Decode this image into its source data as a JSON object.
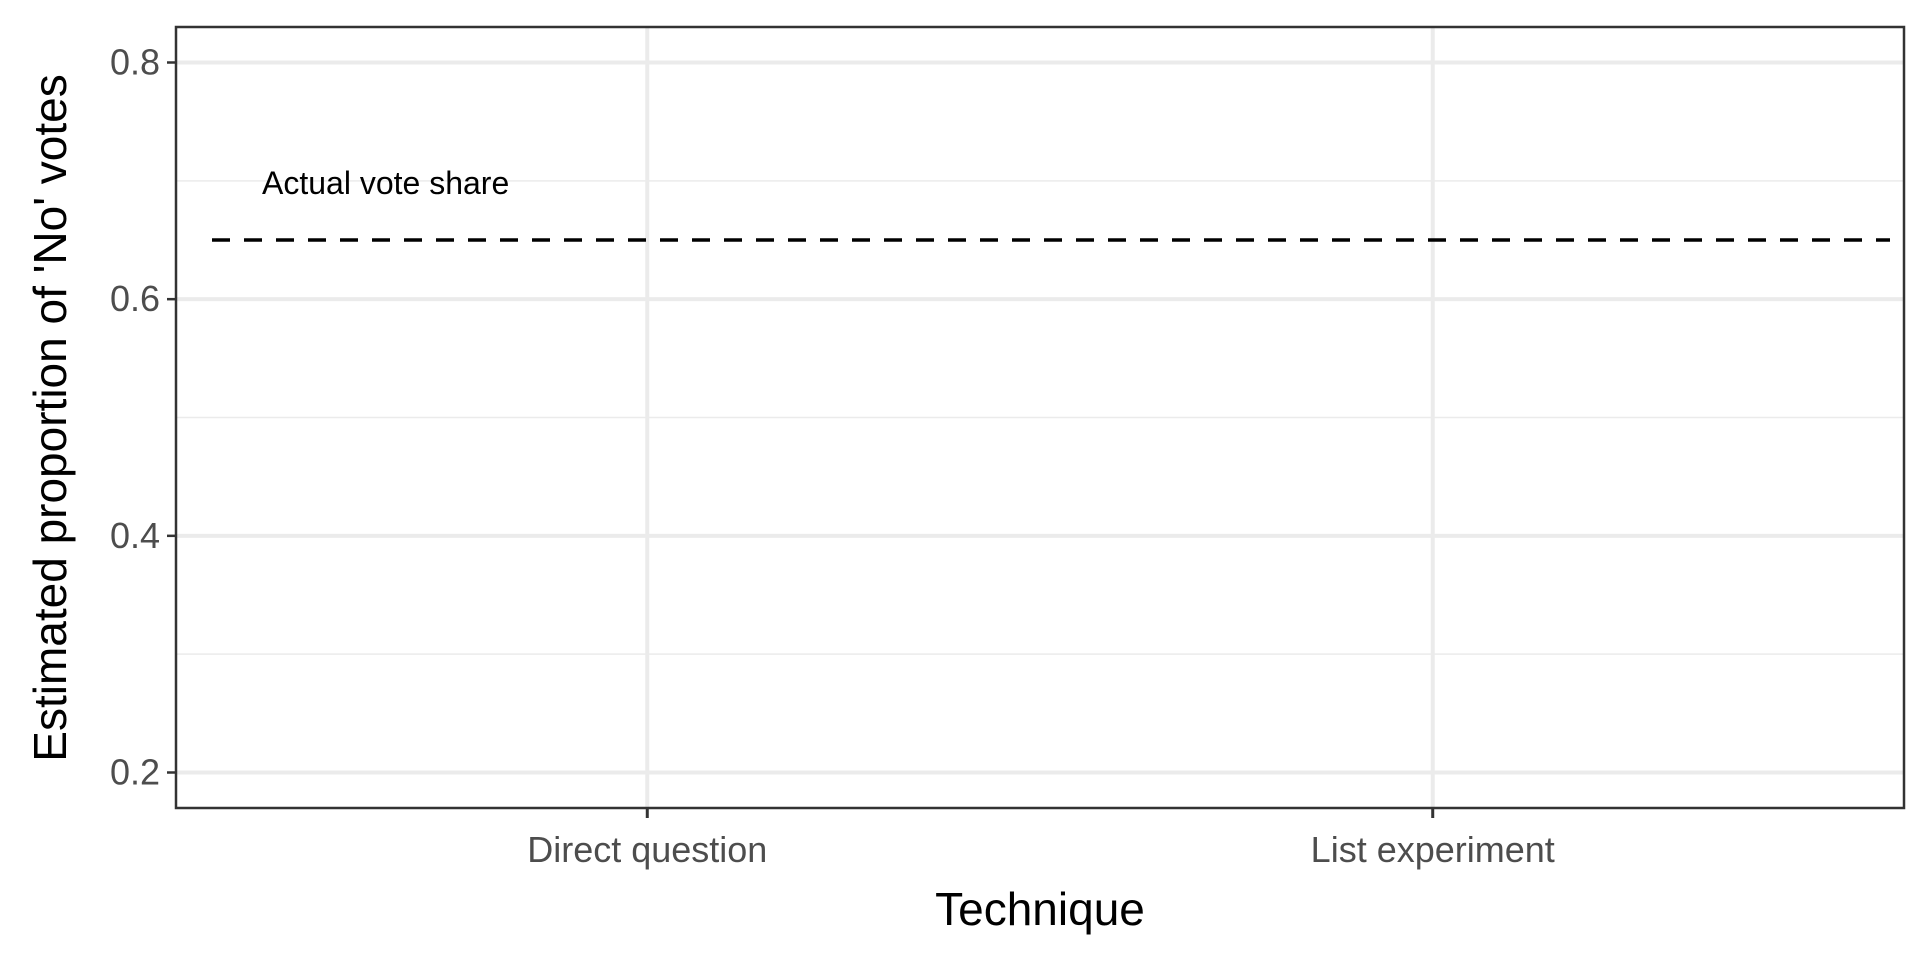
{
  "chart_data": {
    "type": "line",
    "title": "",
    "xlabel": "Technique",
    "ylabel": "Estimated proportion of 'No' votes",
    "categories": [
      "Direct question",
      "List experiment"
    ],
    "ylim": [
      0.17,
      0.83
    ],
    "yticks": [
      0.2,
      0.4,
      0.6,
      0.8
    ],
    "ytick_labels": [
      "0.2",
      "0.4",
      "0.6",
      "0.8"
    ],
    "y_minor_ticks": [
      0.3,
      0.5,
      0.7
    ],
    "grid": true,
    "series": [],
    "reference_lines": [
      {
        "orientation": "horizontal",
        "value": 0.65,
        "style": "dashed",
        "color": "#000000",
        "label": "Actual vote share"
      }
    ],
    "colors": {
      "grid": "#ebebeb",
      "panel_border": "#333333",
      "tick_text": "#4d4d4d",
      "axis_title": "#000000"
    }
  }
}
